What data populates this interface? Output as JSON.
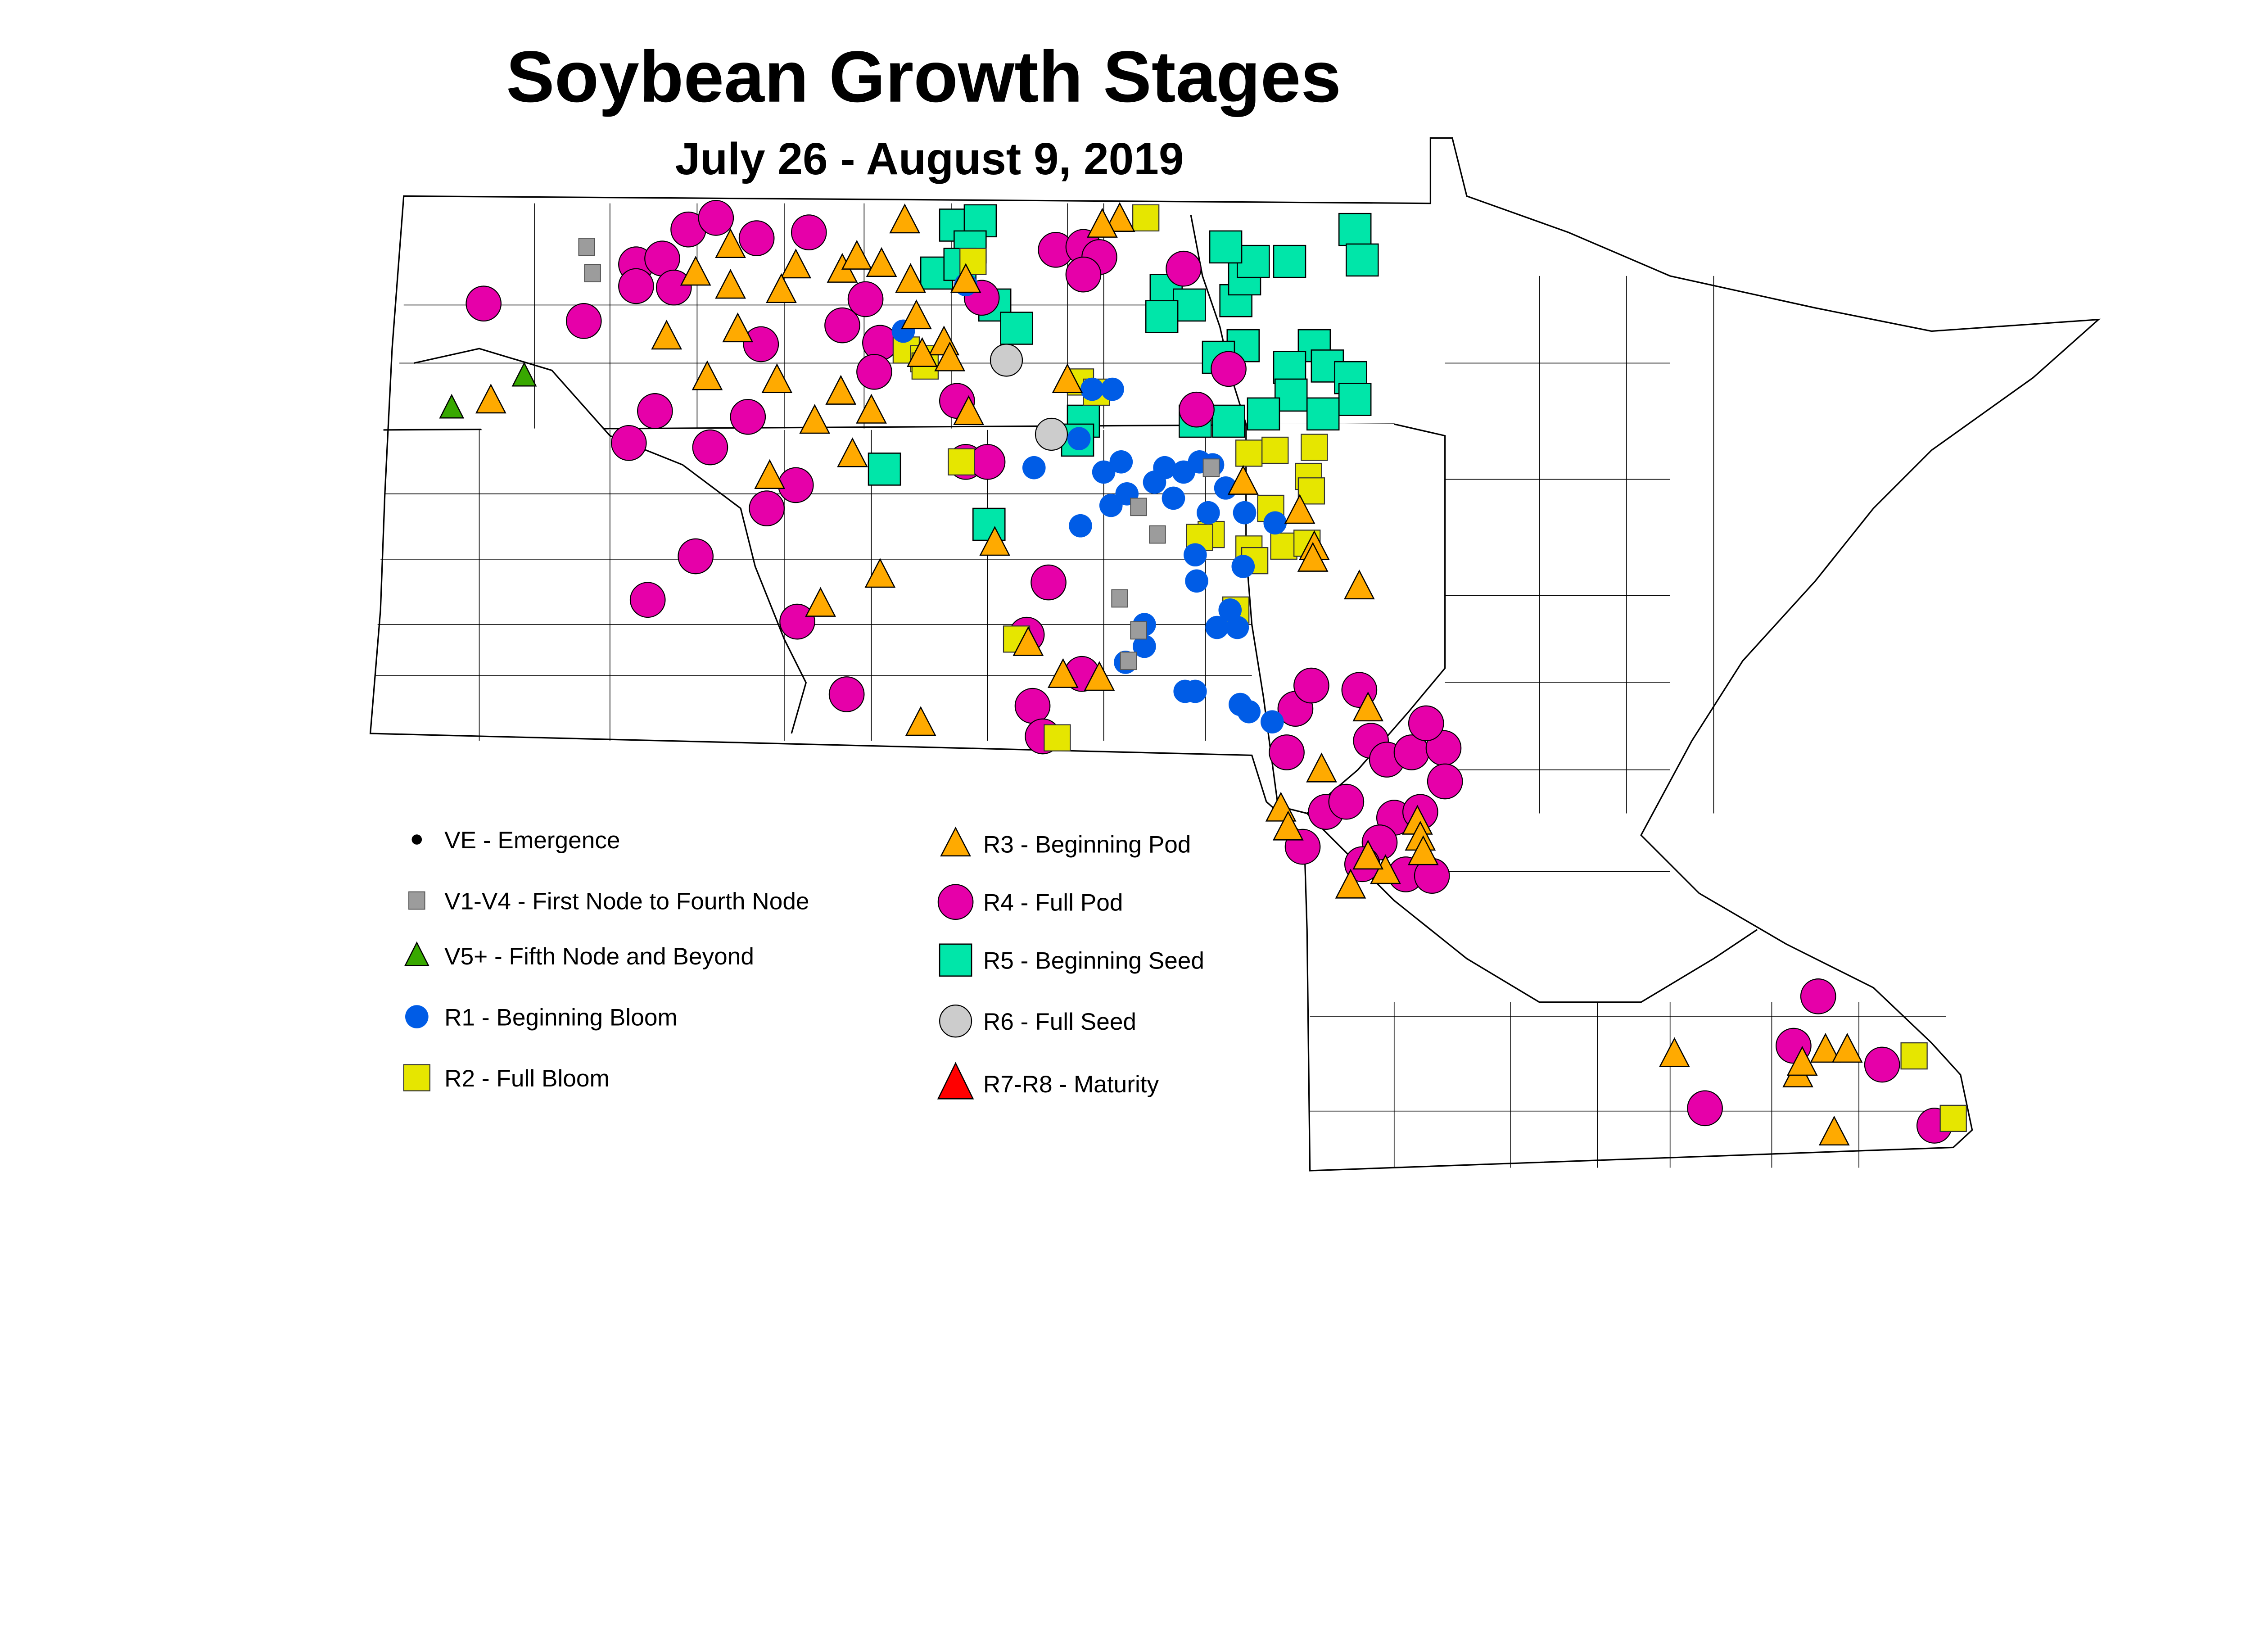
{
  "title": "Soybean Growth Stages",
  "subtitle": "July 26 - August 9, 2019",
  "legend": [
    {
      "stage": "VE",
      "label": "VE - Emergence",
      "symbol": "dot",
      "color": "#000000"
    },
    {
      "stage": "V1-V4",
      "label": "V1-V4 - First Node to Fourth Node",
      "symbol": "small-square",
      "color": "#9c9c9c"
    },
    {
      "stage": "V5+",
      "label": "V5+ - Fifth Node and Beyond",
      "symbol": "triangle",
      "color": "#38a800"
    },
    {
      "stage": "R1",
      "label": "R1 - Beginning Bloom",
      "symbol": "circle",
      "color": "#005ce6"
    },
    {
      "stage": "R2",
      "label": "R2 - Full Bloom",
      "symbol": "square",
      "color": "#e6e600"
    },
    {
      "stage": "R3",
      "label": "R3 - Beginning Pod",
      "symbol": "triangle",
      "color": "#ffaa00"
    },
    {
      "stage": "R4",
      "label": "R4 - Full Pod",
      "symbol": "circle",
      "color": "#e600a9"
    },
    {
      "stage": "R5",
      "label": "R5 - Beginning Seed",
      "symbol": "square",
      "color": "#00e6a9"
    },
    {
      "stage": "R6",
      "label": "R6 - Full Seed",
      "symbol": "circle",
      "color": "#cccccc"
    },
    {
      "stage": "R7-R8",
      "label": "R7-R8 - Maturity",
      "symbol": "triangle",
      "color": "#ff0000"
    }
  ]
}
